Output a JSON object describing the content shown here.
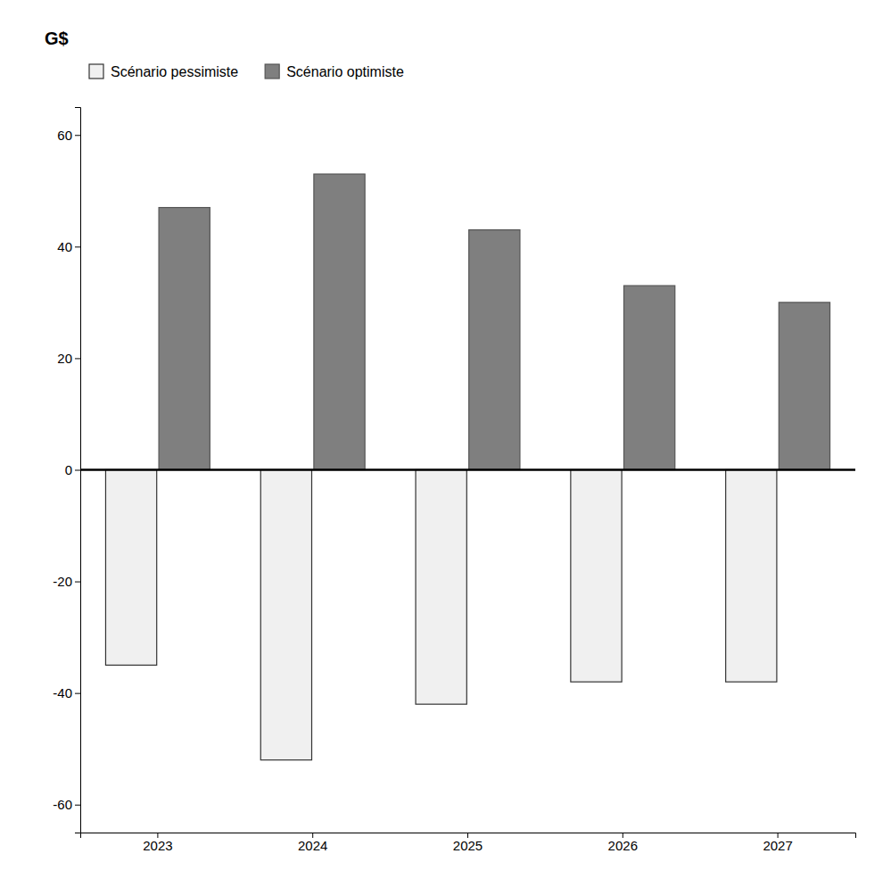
{
  "chart_data": {
    "type": "bar",
    "y_label": "G$",
    "categories": [
      "2023",
      "2024",
      "2025",
      "2026",
      "2027"
    ],
    "series": [
      {
        "name": "Scénario pessimiste",
        "color": "#f0f0f0",
        "values": [
          -35,
          -52,
          -42,
          -38,
          -38
        ]
      },
      {
        "name": "Scénario optimiste",
        "color": "#7f7f7f",
        "values": [
          47,
          53,
          43,
          33,
          30
        ]
      }
    ],
    "ylim": [
      -65,
      65
    ],
    "yticks": [
      -60,
      -40,
      -20,
      0,
      20,
      40,
      60
    ],
    "grid": false,
    "legend": "upper left"
  }
}
